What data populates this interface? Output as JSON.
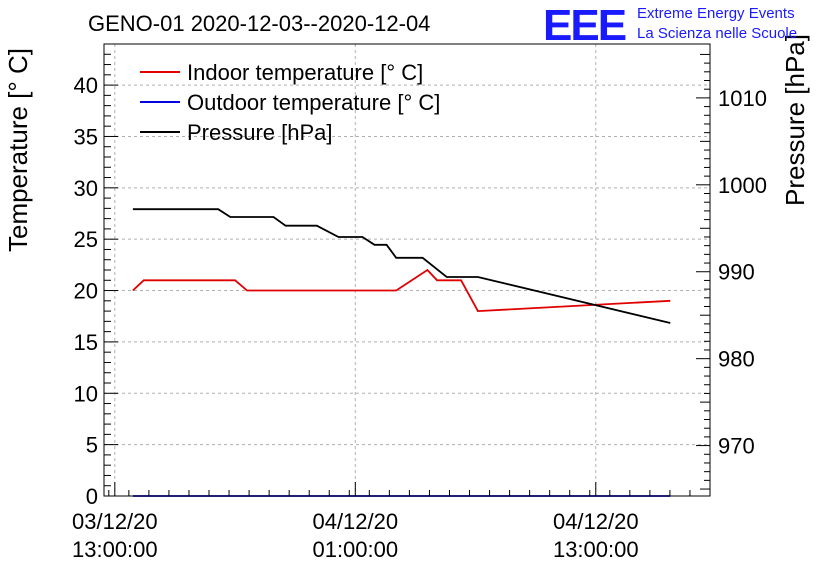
{
  "chart_data": {
    "type": "line",
    "title": "GENO-01 2020-12-03--2020-12-04",
    "ylabel": "Temperature [° C]",
    "y2label": "Pressure [hPa]",
    "ylim": [
      0,
      44
    ],
    "y2lim": [
      964.2,
      1016.2
    ],
    "xlim": [
      -0.45,
      24.75
    ],
    "y_ticks": [
      0,
      5,
      10,
      15,
      20,
      25,
      30,
      35,
      40
    ],
    "y2_ticks": [
      970,
      980,
      990,
      1000,
      1010
    ],
    "x_ticks": [
      {
        "x": 0,
        "date": "03/12/20",
        "time": "13:00:00"
      },
      {
        "x": 10,
        "date": "04/12/20",
        "time": "01:00:00"
      },
      {
        "x": 20,
        "date": "04/12/20",
        "time": "13:00:00"
      }
    ],
    "grid": true,
    "legend_position": "top-left",
    "series": [
      {
        "name": "Indoor temperature [° C]",
        "axis": "left",
        "color": "#e00000",
        "points": [
          [
            0.75,
            20.0
          ],
          [
            1.2,
            21.0
          ],
          [
            5.0,
            21.0
          ],
          [
            5.5,
            20.0
          ],
          [
            11.7,
            20.0
          ],
          [
            13.0,
            22.0
          ],
          [
            13.4,
            21.0
          ],
          [
            14.4,
            21.0
          ],
          [
            15.1,
            18.0
          ],
          [
            23.1,
            19.0
          ]
        ]
      },
      {
        "name": "Outdoor temperature [° C]",
        "axis": "left",
        "color": "#0000e0",
        "points": [
          [
            0.75,
            0.0
          ],
          [
            23.1,
            0.0
          ]
        ]
      },
      {
        "name": "Pressure [hPa]",
        "axis": "right",
        "color": "#000000",
        "points": [
          [
            0.75,
            997.2
          ],
          [
            4.3,
            997.2
          ],
          [
            4.8,
            996.3
          ],
          [
            6.6,
            996.3
          ],
          [
            7.1,
            995.3
          ],
          [
            8.4,
            995.3
          ],
          [
            9.3,
            994.0
          ],
          [
            10.3,
            994.0
          ],
          [
            10.8,
            993.1
          ],
          [
            11.3,
            993.1
          ],
          [
            11.7,
            991.6
          ],
          [
            12.8,
            991.6
          ],
          [
            13.8,
            989.4
          ],
          [
            15.1,
            989.4
          ],
          [
            23.1,
            984.1
          ]
        ]
      }
    ]
  },
  "logo": {
    "mark": "EEE",
    "line1": "Extreme Energy Events",
    "line2": "La Scienza nelle Scuole"
  }
}
